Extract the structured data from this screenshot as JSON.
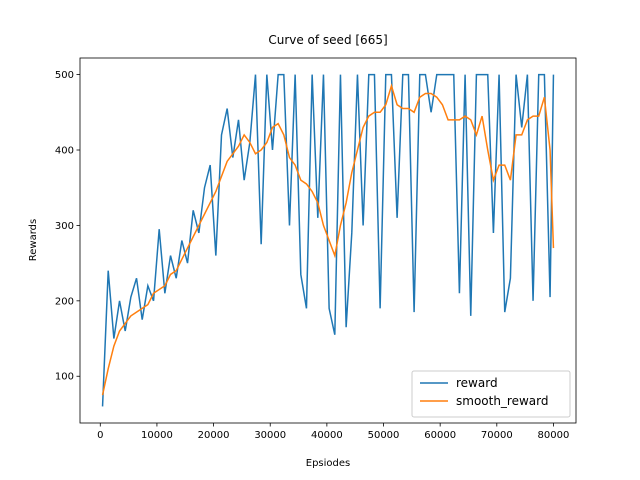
{
  "chart_data": {
    "type": "line",
    "title": "Curve of seed [665]",
    "xlabel": "Epsiodes",
    "ylabel": "Rewards",
    "x": [
      400,
      1400,
      2400,
      3400,
      4400,
      5400,
      6400,
      7400,
      8400,
      9400,
      10400,
      11400,
      12400,
      13400,
      14400,
      15400,
      16400,
      17400,
      18400,
      19400,
      20400,
      21400,
      22400,
      23400,
      24400,
      25400,
      26400,
      27400,
      28400,
      29400,
      30400,
      31400,
      32400,
      33400,
      34400,
      35400,
      36400,
      37400,
      38400,
      39400,
      40400,
      41400,
      42400,
      43400,
      44400,
      45400,
      46400,
      47400,
      48400,
      49400,
      50400,
      51400,
      52400,
      53400,
      54400,
      55400,
      56400,
      57400,
      58400,
      59400,
      60400,
      61400,
      62400,
      63400,
      64400,
      65400,
      66400,
      67400,
      68400,
      69400,
      70400,
      71400,
      72400,
      73400,
      74400,
      75400,
      76400,
      77400,
      78400,
      79400,
      80000
    ],
    "series": [
      {
        "name": "reward",
        "color": "#1f77b4",
        "values": [
          60,
          240,
          150,
          200,
          160,
          205,
          230,
          175,
          220,
          200,
          295,
          210,
          260,
          230,
          280,
          250,
          320,
          290,
          350,
          380,
          260,
          420,
          455,
          390,
          440,
          360,
          410,
          500,
          275,
          500,
          400,
          500,
          500,
          300,
          500,
          235,
          190,
          500,
          310,
          500,
          190,
          155,
          500,
          165,
          290,
          500,
          300,
          500,
          500,
          190,
          500,
          500,
          310,
          500,
          500,
          185,
          500,
          500,
          450,
          500,
          500,
          500,
          500,
          210,
          500,
          180,
          500,
          500,
          500,
          290,
          500,
          185,
          230,
          500,
          430,
          500,
          200,
          500,
          500,
          205,
          500
        ]
      },
      {
        "name": "smooth_reward",
        "color": "#ff7f0e",
        "values": [
          75,
          110,
          140,
          160,
          170,
          180,
          185,
          190,
          195,
          210,
          215,
          220,
          235,
          240,
          255,
          270,
          285,
          300,
          315,
          330,
          345,
          365,
          385,
          395,
          405,
          420,
          410,
          395,
          400,
          410,
          430,
          435,
          420,
          390,
          380,
          360,
          355,
          345,
          330,
          300,
          280,
          260,
          300,
          330,
          370,
          400,
          430,
          445,
          450,
          450,
          460,
          485,
          460,
          455,
          455,
          450,
          470,
          475,
          475,
          470,
          460,
          440,
          440,
          440,
          445,
          440,
          420,
          445,
          400,
          360,
          380,
          380,
          360,
          420,
          420,
          440,
          445,
          445,
          470,
          400,
          270
        ]
      }
    ],
    "xlim": [
      -3580,
      83980
    ],
    "ylim": [
      38,
      522
    ],
    "xticks": [
      0,
      10000,
      20000,
      30000,
      40000,
      50000,
      60000,
      70000,
      80000
    ],
    "yticks": [
      100,
      200,
      300,
      400,
      500
    ],
    "legend": "lower right"
  }
}
